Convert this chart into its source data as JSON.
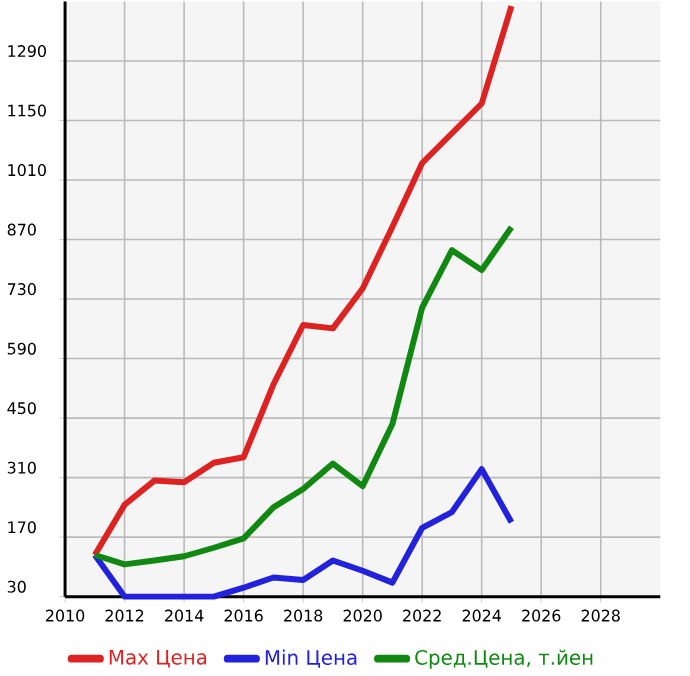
{
  "chart_data": {
    "type": "line",
    "x": [
      2011,
      2012,
      2013,
      2014,
      2015,
      2016,
      2017,
      2018,
      2019,
      2020,
      2021,
      2022,
      2023,
      2024,
      2025
    ],
    "series": [
      {
        "name": "Max Цена",
        "color": "#dd2222",
        "values": [
          128,
          246,
          303,
          299,
          345,
          358,
          529,
          669,
          661,
          755,
          900,
          1050,
          1120,
          1190,
          1419
        ]
      },
      {
        "name": "Min Цена",
        "color": "#2222dd",
        "values": [
          128,
          30,
          30,
          30,
          30,
          51,
          75,
          69,
          115,
          91,
          63,
          192,
          229,
          330,
          205
        ]
      },
      {
        "name": "Сред.Цена, т.йен",
        "color": "#118811",
        "values": [
          128,
          106,
          115,
          125,
          145,
          167,
          240,
          283,
          343,
          290,
          436,
          710,
          845,
          798,
          899
        ]
      }
    ],
    "xlim": [
      2010,
      2030
    ],
    "ylim": [
      30,
      1430
    ],
    "xticks": [
      2010,
      2012,
      2014,
      2016,
      2018,
      2020,
      2022,
      2024,
      2026,
      2028
    ],
    "yticks": [
      30,
      170,
      310,
      450,
      590,
      730,
      870,
      1010,
      1150,
      1290
    ],
    "grid": true,
    "legend": "bottom",
    "marker": "none",
    "line_style": "solid"
  }
}
